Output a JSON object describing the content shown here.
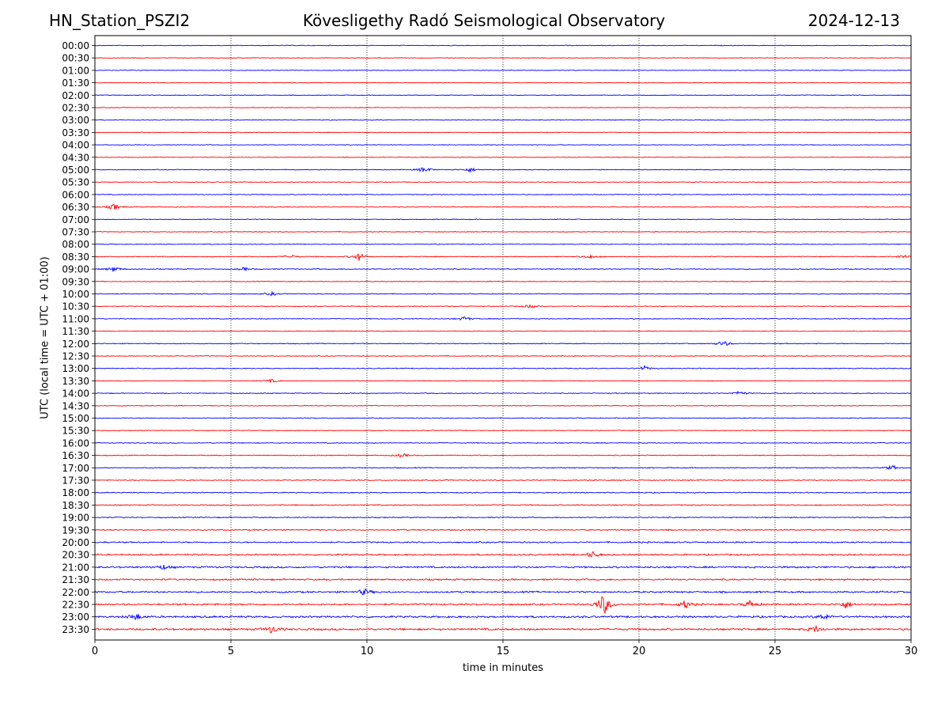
{
  "header": {
    "station": "HN_Station_PSZI2",
    "observatory": "Kövesligethy Radó Seismological Observatory",
    "date": "2024-12-13"
  },
  "chart_data": {
    "type": "line",
    "title": "Kövesligethy Radó Seismological Observatory",
    "xlabel": "time in minutes",
    "ylabel": "UTC (local time = UTC + 01:00)",
    "xlim": [
      0,
      30
    ],
    "x_ticks": [
      0,
      5,
      10,
      15,
      20,
      25,
      30
    ],
    "grid": "vertical dotted",
    "colors": [
      "#0000ff",
      "#ff0000"
    ],
    "rows": [
      "00:00",
      "00:30",
      "01:00",
      "01:30",
      "02:00",
      "02:30",
      "03:00",
      "03:30",
      "04:00",
      "04:30",
      "05:00",
      "05:30",
      "06:00",
      "06:30",
      "07:00",
      "07:30",
      "08:00",
      "08:30",
      "09:00",
      "09:30",
      "10:00",
      "10:30",
      "11:00",
      "11:30",
      "12:00",
      "12:30",
      "13:00",
      "13:30",
      "14:00",
      "14:30",
      "15:00",
      "15:30",
      "16:00",
      "16:30",
      "17:00",
      "17:30",
      "18:00",
      "18:30",
      "19:00",
      "19:30",
      "20:00",
      "20:30",
      "21:00",
      "21:30",
      "22:00",
      "22:30",
      "23:00",
      "23:30"
    ],
    "noise_levels": [
      0.4,
      0.35,
      0.35,
      0.35,
      0.35,
      0.35,
      0.35,
      0.35,
      0.35,
      0.35,
      0.4,
      0.35,
      0.4,
      0.45,
      0.4,
      0.4,
      0.4,
      0.45,
      0.5,
      0.4,
      0.45,
      0.4,
      0.45,
      0.4,
      0.45,
      0.4,
      0.45,
      0.4,
      0.45,
      0.4,
      0.45,
      0.4,
      0.45,
      0.45,
      0.5,
      0.5,
      0.5,
      0.55,
      0.55,
      0.6,
      0.7,
      0.8,
      0.9,
      0.8,
      0.9,
      0.9,
      1.0,
      1.0
    ],
    "events": [
      {
        "row": "05:00",
        "minute": 12.1,
        "amplitude": 4
      },
      {
        "row": "05:00",
        "minute": 13.8,
        "amplitude": 3
      },
      {
        "row": "06:30",
        "minute": 0.7,
        "amplitude": 4
      },
      {
        "row": "08:30",
        "minute": 9.7,
        "amplitude": 5
      },
      {
        "row": "08:30",
        "minute": 7.2,
        "amplitude": 2.5
      },
      {
        "row": "08:30",
        "minute": 18.2,
        "amplitude": 2.5
      },
      {
        "row": "08:30",
        "minute": 29.7,
        "amplitude": 2.5
      },
      {
        "row": "09:00",
        "minute": 0.7,
        "amplitude": 3.5
      },
      {
        "row": "09:00",
        "minute": 5.5,
        "amplitude": 2
      },
      {
        "row": "10:00",
        "minute": 6.5,
        "amplitude": 2
      },
      {
        "row": "10:30",
        "minute": 16.0,
        "amplitude": 2.5
      },
      {
        "row": "11:00",
        "minute": 13.6,
        "amplitude": 3
      },
      {
        "row": "12:00",
        "minute": 23.1,
        "amplitude": 4
      },
      {
        "row": "13:00",
        "minute": 20.2,
        "amplitude": 3
      },
      {
        "row": "13:30",
        "minute": 6.5,
        "amplitude": 2
      },
      {
        "row": "14:00",
        "minute": 23.7,
        "amplitude": 3
      },
      {
        "row": "16:30",
        "minute": 11.3,
        "amplitude": 2.5
      },
      {
        "row": "17:00",
        "minute": 29.3,
        "amplitude": 3
      },
      {
        "row": "20:30",
        "minute": 18.3,
        "amplitude": 4
      },
      {
        "row": "21:00",
        "minute": 2.5,
        "amplitude": 3
      },
      {
        "row": "22:00",
        "minute": 9.9,
        "amplitude": 4
      },
      {
        "row": "22:30",
        "minute": 18.7,
        "amplitude": 14
      },
      {
        "row": "22:30",
        "minute": 21.7,
        "amplitude": 5
      },
      {
        "row": "22:30",
        "minute": 24.1,
        "amplitude": 5
      },
      {
        "row": "22:30",
        "minute": 27.6,
        "amplitude": 5
      },
      {
        "row": "23:00",
        "minute": 1.5,
        "amplitude": 5
      },
      {
        "row": "23:00",
        "minute": 26.8,
        "amplitude": 4
      },
      {
        "row": "23:30",
        "minute": 6.5,
        "amplitude": 5
      },
      {
        "row": "23:30",
        "minute": 26.5,
        "amplitude": 4
      }
    ]
  }
}
